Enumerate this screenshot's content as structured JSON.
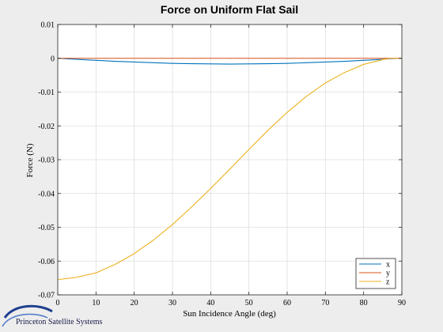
{
  "chart_data": {
    "type": "line",
    "title": "Force on Uniform Flat Sail",
    "xlabel": "Sun Incidence Angle (deg)",
    "ylabel": "Force (N)",
    "xlim": [
      0,
      90
    ],
    "ylim": [
      -0.07,
      0.01
    ],
    "xticks": [
      0,
      10,
      20,
      30,
      40,
      50,
      60,
      70,
      80,
      90
    ],
    "yticks": [
      0.01,
      0,
      -0.01,
      -0.02,
      -0.03,
      -0.04,
      -0.05,
      -0.06,
      -0.07
    ],
    "xtick_labels": [
      "0",
      "10",
      "20",
      "30",
      "40",
      "50",
      "60",
      "70",
      "80",
      "90"
    ],
    "ytick_labels": [
      "0.01",
      "0",
      "-0.01",
      "-0.02",
      "-0.03",
      "-0.04",
      "-0.05",
      "-0.06",
      "-0.07"
    ],
    "grid": true,
    "legend_position": "bottom-right",
    "x": [
      0,
      5,
      10,
      15,
      20,
      25,
      30,
      35,
      40,
      45,
      50,
      55,
      60,
      65,
      70,
      75,
      80,
      85,
      87,
      90
    ],
    "series": [
      {
        "name": "x",
        "color": "#0072bd",
        "values": [
          0,
          -0.0003,
          -0.0006,
          -0.0009,
          -0.0011,
          -0.0013,
          -0.0015,
          -0.0016,
          -0.00165,
          -0.0017,
          -0.00165,
          -0.0016,
          -0.0015,
          -0.0013,
          -0.0011,
          -0.0009,
          -0.0006,
          -0.0003,
          -0.0001,
          0
        ]
      },
      {
        "name": "y",
        "color": "#d95319",
        "values": [
          0,
          0,
          0,
          0,
          0,
          0,
          0,
          0,
          0,
          0,
          0,
          0,
          0,
          0,
          0,
          0,
          0,
          0,
          0,
          0
        ]
      },
      {
        "name": "z",
        "color": "#edb120",
        "values": [
          -0.0655,
          -0.0648,
          -0.0635,
          -0.061,
          -0.0578,
          -0.0538,
          -0.0492,
          -0.044,
          -0.0385,
          -0.0328,
          -0.027,
          -0.0213,
          -0.016,
          -0.0113,
          -0.0073,
          -0.0042,
          -0.0018,
          -0.0004,
          0.0,
          0
        ]
      }
    ]
  },
  "logo": {
    "text": "Princeton Satellite Systems"
  }
}
